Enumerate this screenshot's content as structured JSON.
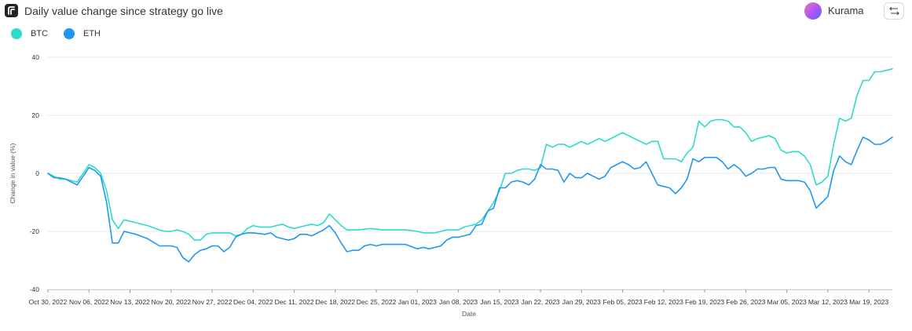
{
  "header": {
    "title": "Daily value change since strategy go live",
    "user_name": "Kurama",
    "logo_icon": "app-logo-icon",
    "swap_icon": "swap-arrows-icon"
  },
  "colors": {
    "BTC": "#2ddcc8",
    "ETH": "#2196f3",
    "grid": "#e8e8e8"
  },
  "chart_data": {
    "type": "line",
    "title": "",
    "xlabel": "Date",
    "ylabel": "Change in value (%)",
    "ylim": [
      -40,
      40
    ],
    "yticks": [
      40,
      20,
      0,
      -20,
      -40
    ],
    "xlim": [
      "2022-10-30",
      "2023-03-23"
    ],
    "x_tick_dates": [
      "2022-10-30",
      "2022-11-06",
      "2022-11-13",
      "2022-11-20",
      "2022-11-27",
      "2022-12-04",
      "2022-12-11",
      "2022-12-18",
      "2022-12-25",
      "2023-01-01",
      "2023-01-08",
      "2023-01-15",
      "2023-01-22",
      "2023-01-29",
      "2023-02-05",
      "2023-02-12",
      "2023-02-19",
      "2023-02-26",
      "2023-03-05",
      "2023-03-12",
      "2023-03-19"
    ],
    "x_tick_labels": [
      "Oct 30, 2022",
      "Nov 06, 2022",
      "Nov 13, 2022",
      "Nov 20, 2022",
      "Nov 27, 2022",
      "Dec 04, 2022",
      "Dec 11, 2022",
      "Dec 18, 2022",
      "Dec 25, 2022",
      "Jan 01, 2023",
      "Jan 08, 2023",
      "Jan 15, 2023",
      "Jan 22, 2023",
      "Jan 29, 2023",
      "Feb 05, 2023",
      "Feb 12, 2023",
      "Feb 19, 2023",
      "Feb 26, 2023",
      "Mar 05, 2023",
      "Mar 12, 2023",
      "Mar 19, 2023"
    ],
    "grid": true,
    "legend_position": "top-left",
    "series": [
      {
        "name": "BTC",
        "points": [
          [
            "2022-10-30",
            0
          ],
          [
            "2022-10-31",
            -1
          ],
          [
            "2022-11-01",
            -2
          ],
          [
            "2022-11-02",
            -2
          ],
          [
            "2022-11-04",
            -3
          ],
          [
            "2022-11-06",
            3
          ],
          [
            "2022-11-07",
            2
          ],
          [
            "2022-11-08",
            0
          ],
          [
            "2022-11-09",
            -6
          ],
          [
            "2022-11-10",
            -16
          ],
          [
            "2022-11-11",
            -19
          ],
          [
            "2022-11-12",
            -16
          ],
          [
            "2022-11-14",
            -17
          ],
          [
            "2022-11-16",
            -18
          ],
          [
            "2022-11-18",
            -19.5
          ],
          [
            "2022-11-19",
            -20
          ],
          [
            "2022-11-20",
            -20
          ],
          [
            "2022-11-21",
            -19.5
          ],
          [
            "2022-11-22",
            -20
          ],
          [
            "2022-11-23",
            -21
          ],
          [
            "2022-11-24",
            -23
          ],
          [
            "2022-11-25",
            -23
          ],
          [
            "2022-11-26",
            -21
          ],
          [
            "2022-11-27",
            -20.5
          ],
          [
            "2022-11-28",
            -20.5
          ],
          [
            "2022-11-30",
            -20.5
          ],
          [
            "2022-12-01",
            -21.5
          ],
          [
            "2022-12-02",
            -21
          ],
          [
            "2022-12-03",
            -19
          ],
          [
            "2022-12-04",
            -18
          ],
          [
            "2022-12-05",
            -18.5
          ],
          [
            "2022-12-07",
            -18.5
          ],
          [
            "2022-12-09",
            -17.5
          ],
          [
            "2022-12-10",
            -18.5
          ],
          [
            "2022-12-11",
            -19
          ],
          [
            "2022-12-12",
            -18.5
          ],
          [
            "2022-12-14",
            -17.5
          ],
          [
            "2022-12-15",
            -18
          ],
          [
            "2022-12-16",
            -17
          ],
          [
            "2022-12-17",
            -14
          ],
          [
            "2022-12-18",
            -16
          ],
          [
            "2022-12-19",
            -18
          ],
          [
            "2022-12-20",
            -19.5
          ],
          [
            "2022-12-22",
            -19.5
          ],
          [
            "2022-12-24",
            -19
          ],
          [
            "2022-12-26",
            -19.5
          ],
          [
            "2022-12-28",
            -19.5
          ],
          [
            "2022-12-30",
            -19.5
          ],
          [
            "2023-01-01",
            -20
          ],
          [
            "2023-01-02",
            -20.5
          ],
          [
            "2023-01-03",
            -20.5
          ],
          [
            "2023-01-04",
            -20.5
          ],
          [
            "2023-01-05",
            -20
          ],
          [
            "2023-01-06",
            -19.5
          ],
          [
            "2023-01-08",
            -19.5
          ],
          [
            "2023-01-09",
            -18.5
          ],
          [
            "2023-01-10",
            -18
          ],
          [
            "2023-01-11",
            -17.5
          ],
          [
            "2023-01-12",
            -16
          ],
          [
            "2023-01-13",
            -13
          ],
          [
            "2023-01-14",
            -10
          ],
          [
            "2023-01-15",
            -6
          ],
          [
            "2023-01-16",
            0
          ],
          [
            "2023-01-17",
            0
          ],
          [
            "2023-01-18",
            1
          ],
          [
            "2023-01-19",
            1.5
          ],
          [
            "2023-01-20",
            1.5
          ],
          [
            "2023-01-21",
            1
          ],
          [
            "2023-01-22",
            2
          ],
          [
            "2023-01-23",
            10
          ],
          [
            "2023-01-24",
            9
          ],
          [
            "2023-01-25",
            10
          ],
          [
            "2023-01-26",
            10
          ],
          [
            "2023-01-27",
            9
          ],
          [
            "2023-01-28",
            10
          ],
          [
            "2023-01-29",
            11
          ],
          [
            "2023-01-30",
            10
          ],
          [
            "2023-01-31",
            11
          ],
          [
            "2023-02-01",
            12
          ],
          [
            "2023-02-02",
            11
          ],
          [
            "2023-02-03",
            12
          ],
          [
            "2023-02-04",
            13
          ],
          [
            "2023-02-05",
            14
          ],
          [
            "2023-02-06",
            13
          ],
          [
            "2023-02-07",
            12
          ],
          [
            "2023-02-08",
            11
          ],
          [
            "2023-02-09",
            10
          ],
          [
            "2023-02-10",
            11
          ],
          [
            "2023-02-11",
            11
          ],
          [
            "2023-02-12",
            5
          ],
          [
            "2023-02-13",
            5
          ],
          [
            "2023-02-14",
            5
          ],
          [
            "2023-02-15",
            4
          ],
          [
            "2023-02-16",
            7
          ],
          [
            "2023-02-17",
            9
          ],
          [
            "2023-02-18",
            18
          ],
          [
            "2023-02-19",
            16
          ],
          [
            "2023-02-20",
            18
          ],
          [
            "2023-02-21",
            18.5
          ],
          [
            "2023-02-22",
            18.5
          ],
          [
            "2023-02-23",
            18
          ],
          [
            "2023-02-24",
            16
          ],
          [
            "2023-02-25",
            16
          ],
          [
            "2023-02-26",
            14
          ],
          [
            "2023-02-27",
            11
          ],
          [
            "2023-02-28",
            12
          ],
          [
            "2023-03-01",
            12.5
          ],
          [
            "2023-03-02",
            13
          ],
          [
            "2023-03-03",
            12
          ],
          [
            "2023-03-04",
            8
          ],
          [
            "2023-03-05",
            7
          ],
          [
            "2023-03-06",
            7.5
          ],
          [
            "2023-03-07",
            7.5
          ],
          [
            "2023-03-08",
            6
          ],
          [
            "2023-03-09",
            3
          ],
          [
            "2023-03-10",
            -4
          ],
          [
            "2023-03-11",
            -3
          ],
          [
            "2023-03-12",
            -1
          ],
          [
            "2023-03-13",
            10
          ],
          [
            "2023-03-14",
            19
          ],
          [
            "2023-03-15",
            18
          ],
          [
            "2023-03-16",
            19
          ],
          [
            "2023-03-17",
            27
          ],
          [
            "2023-03-18",
            32
          ],
          [
            "2023-03-19",
            32
          ],
          [
            "2023-03-20",
            35
          ],
          [
            "2023-03-21",
            35
          ],
          [
            "2023-03-22",
            35.5
          ],
          [
            "2023-03-23",
            36
          ]
        ]
      },
      {
        "name": "ETH",
        "points": [
          [
            "2022-10-30",
            0
          ],
          [
            "2022-10-31",
            -1.5
          ],
          [
            "2022-11-01",
            -1.5
          ],
          [
            "2022-11-02",
            -2
          ],
          [
            "2022-11-04",
            -4
          ],
          [
            "2022-11-06",
            2
          ],
          [
            "2022-11-07",
            1
          ],
          [
            "2022-11-08",
            -1
          ],
          [
            "2022-11-09",
            -10
          ],
          [
            "2022-11-10",
            -24
          ],
          [
            "2022-11-11",
            -24
          ],
          [
            "2022-11-12",
            -20
          ],
          [
            "2022-11-14",
            -21
          ],
          [
            "2022-11-16",
            -22.5
          ],
          [
            "2022-11-18",
            -25
          ],
          [
            "2022-11-19",
            -25
          ],
          [
            "2022-11-20",
            -25
          ],
          [
            "2022-11-21",
            -25.5
          ],
          [
            "2022-11-22",
            -29
          ],
          [
            "2022-11-23",
            -30.5
          ],
          [
            "2022-11-24",
            -28
          ],
          [
            "2022-11-25",
            -26.5
          ],
          [
            "2022-11-26",
            -26
          ],
          [
            "2022-11-27",
            -25
          ],
          [
            "2022-11-28",
            -25
          ],
          [
            "2022-11-29",
            -27
          ],
          [
            "2022-11-30",
            -25.5
          ],
          [
            "2022-12-01",
            -22
          ],
          [
            "2022-12-02",
            -21
          ],
          [
            "2022-12-03",
            -20.5
          ],
          [
            "2022-12-04",
            -20.5
          ],
          [
            "2022-12-06",
            -21
          ],
          [
            "2022-12-07",
            -20.5
          ],
          [
            "2022-12-08",
            -22
          ],
          [
            "2022-12-10",
            -23
          ],
          [
            "2022-12-11",
            -22.5
          ],
          [
            "2022-12-12",
            -21
          ],
          [
            "2022-12-13",
            -21
          ],
          [
            "2022-12-14",
            -21.5
          ],
          [
            "2022-12-15",
            -20.5
          ],
          [
            "2022-12-16",
            -19.5
          ],
          [
            "2022-12-17",
            -18
          ],
          [
            "2022-12-18",
            -20.5
          ],
          [
            "2022-12-19",
            -24
          ],
          [
            "2022-12-20",
            -27
          ],
          [
            "2022-12-21",
            -26.5
          ],
          [
            "2022-12-22",
            -26.5
          ],
          [
            "2022-12-23",
            -25
          ],
          [
            "2022-12-24",
            -24.5
          ],
          [
            "2022-12-25",
            -25
          ],
          [
            "2022-12-26",
            -24.5
          ],
          [
            "2022-12-28",
            -24.5
          ],
          [
            "2022-12-30",
            -24.5
          ],
          [
            "2023-01-01",
            -26
          ],
          [
            "2023-01-02",
            -25.5
          ],
          [
            "2023-01-03",
            -26
          ],
          [
            "2023-01-04",
            -25.5
          ],
          [
            "2023-01-05",
            -25
          ],
          [
            "2023-01-06",
            -23
          ],
          [
            "2023-01-07",
            -22
          ],
          [
            "2023-01-08",
            -22
          ],
          [
            "2023-01-09",
            -21.5
          ],
          [
            "2023-01-10",
            -21
          ],
          [
            "2023-01-11",
            -18
          ],
          [
            "2023-01-12",
            -17.5
          ],
          [
            "2023-01-13",
            -13
          ],
          [
            "2023-01-14",
            -12
          ],
          [
            "2023-01-15",
            -5
          ],
          [
            "2023-01-16",
            -5
          ],
          [
            "2023-01-17",
            -3
          ],
          [
            "2023-01-18",
            -2.5
          ],
          [
            "2023-01-19",
            -3
          ],
          [
            "2023-01-20",
            -4
          ],
          [
            "2023-01-21",
            -2
          ],
          [
            "2023-01-22",
            3
          ],
          [
            "2023-01-23",
            1.5
          ],
          [
            "2023-01-24",
            1.5
          ],
          [
            "2023-01-25",
            1
          ],
          [
            "2023-01-26",
            -3
          ],
          [
            "2023-01-27",
            0
          ],
          [
            "2023-01-28",
            -1.5
          ],
          [
            "2023-01-29",
            -1.5
          ],
          [
            "2023-01-30",
            0
          ],
          [
            "2023-01-31",
            -1
          ],
          [
            "2023-02-01",
            -2
          ],
          [
            "2023-02-02",
            -1
          ],
          [
            "2023-02-03",
            2
          ],
          [
            "2023-02-04",
            3
          ],
          [
            "2023-02-05",
            4
          ],
          [
            "2023-02-06",
            3
          ],
          [
            "2023-02-07",
            1.5
          ],
          [
            "2023-02-08",
            2
          ],
          [
            "2023-02-09",
            4
          ],
          [
            "2023-02-10",
            0
          ],
          [
            "2023-02-11",
            -4
          ],
          [
            "2023-02-12",
            -4.5
          ],
          [
            "2023-02-13",
            -5
          ],
          [
            "2023-02-14",
            -7
          ],
          [
            "2023-02-15",
            -5
          ],
          [
            "2023-02-16",
            -2
          ],
          [
            "2023-02-17",
            5
          ],
          [
            "2023-02-18",
            4
          ],
          [
            "2023-02-19",
            5.5
          ],
          [
            "2023-02-20",
            5.5
          ],
          [
            "2023-02-21",
            5.5
          ],
          [
            "2023-02-22",
            4
          ],
          [
            "2023-02-23",
            1.5
          ],
          [
            "2023-02-24",
            3
          ],
          [
            "2023-02-25",
            1.5
          ],
          [
            "2023-02-26",
            -1
          ],
          [
            "2023-02-27",
            0
          ],
          [
            "2023-02-28",
            1.5
          ],
          [
            "2023-03-01",
            1.5
          ],
          [
            "2023-03-02",
            2
          ],
          [
            "2023-03-03",
            2
          ],
          [
            "2023-03-04",
            -2
          ],
          [
            "2023-03-05",
            -2.5
          ],
          [
            "2023-03-06",
            -2.5
          ],
          [
            "2023-03-07",
            -2.5
          ],
          [
            "2023-03-08",
            -3
          ],
          [
            "2023-03-09",
            -6
          ],
          [
            "2023-03-10",
            -12
          ],
          [
            "2023-03-11",
            -10
          ],
          [
            "2023-03-12",
            -8
          ],
          [
            "2023-03-13",
            1
          ],
          [
            "2023-03-14",
            6
          ],
          [
            "2023-03-15",
            4
          ],
          [
            "2023-03-16",
            3
          ],
          [
            "2023-03-17",
            8
          ],
          [
            "2023-03-18",
            12.5
          ],
          [
            "2023-03-19",
            11.5
          ],
          [
            "2023-03-20",
            10
          ],
          [
            "2023-03-21",
            10
          ],
          [
            "2023-03-22",
            11
          ],
          [
            "2023-03-23",
            12.5
          ]
        ]
      }
    ]
  }
}
